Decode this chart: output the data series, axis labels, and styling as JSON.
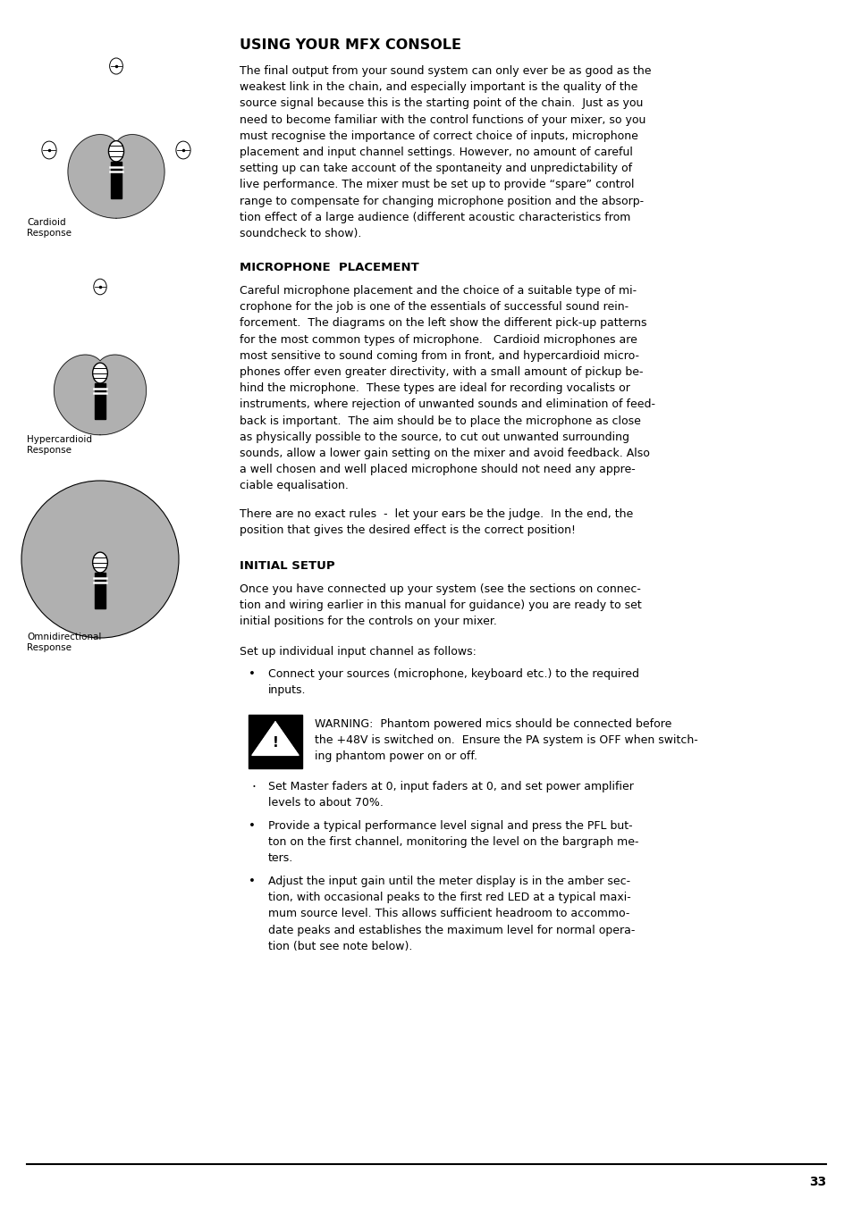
{
  "bg_color": "#ffffff",
  "page_number": "33",
  "title": "USING YOUR MFX CONSOLE",
  "section1_heading": "MICROPHONE  PLACEMENT",
  "section2_heading": "INITIAL SETUP",
  "intro_text": "The final output from your sound system can only ever be as good as the\nweakest link in the chain, and especially important is the quality of the\nsource signal because this is the starting point of the chain.  Just as you\nneed to become familiar with the control functions of your mixer, so you\nmust recognise the importance of correct choice of inputs, microphone\nplacement and input channel settings. However, no amount of careful\nsetting up can take account of the spontaneity and unpredictability of\nlive performance. The mixer must be set up to provide “spare” control\nrange to compensate for changing microphone position and the absorp-\ntion effect of a large audience (different acoustic characteristics from\nsoundcheck to show).",
  "mic_text1": "Careful microphone placement and the choice of a suitable type of mi-\ncrophone for the job is one of the essentials of successful sound rein-\nforcement.  The diagrams on the left show the different pick-up patterns\nfor the most common types of microphone.   Cardioid microphones are\nmost sensitive to sound coming from in front, and hypercardioid micro-\nphones offer even greater directivity, with a small amount of pickup be-\nhind the microphone.  These types are ideal for recording vocalists or\ninstruments, where rejection of unwanted sounds and elimination of feed-\nback is important.  The aim should be to place the microphone as close\nas physically possible to the source, to cut out unwanted surrounding\nsounds, allow a lower gain setting on the mixer and avoid feedback. Also\na well chosen and well placed microphone should not need any appre-\nciable equalisation.",
  "mic_text2": "There are no exact rules  -  let your ears be the judge.  In the end, the\nposition that gives the desired effect is the correct position!",
  "initial_setup_p1": "Once you have connected up your system (see the sections on connec-\ntion and wiring earlier in this manual for guidance) you are ready to set\ninitial positions for the controls on your mixer.",
  "initial_setup_p2": "Set up individual input channel as follows:",
  "bullet1": "Connect your sources (microphone, keyboard etc.) to the required\ninputs.",
  "warning_text": "WARNING:  Phantom powered mics should be connected before\nthe +48V is switched on.  Ensure the PA system is OFF when switch-\ning phantom power on or off.",
  "dot_item": "Set Master faders at 0, input faders at 0, and set power amplifier\nlevels to about 70%.",
  "bullet2": "Provide a typical performance level signal and press the PFL but-\nton on the first channel, monitoring the level on the bargraph me-\nters.",
  "bullet3": "Adjust the input gain until the meter display is in the amber sec-\ntion, with occasional peaks to the first red LED at a typical maxi-\nmum source level. This allows sufficient headroom to accommo-\ndate peaks and establishes the maximum level for normal opera-\ntion (but see note below).",
  "label_cardioid": "Cardioid\nResponse",
  "label_hypercardioid": "Hypercardioid\nResponse",
  "label_omni": "Omnidirectional\nResponse"
}
